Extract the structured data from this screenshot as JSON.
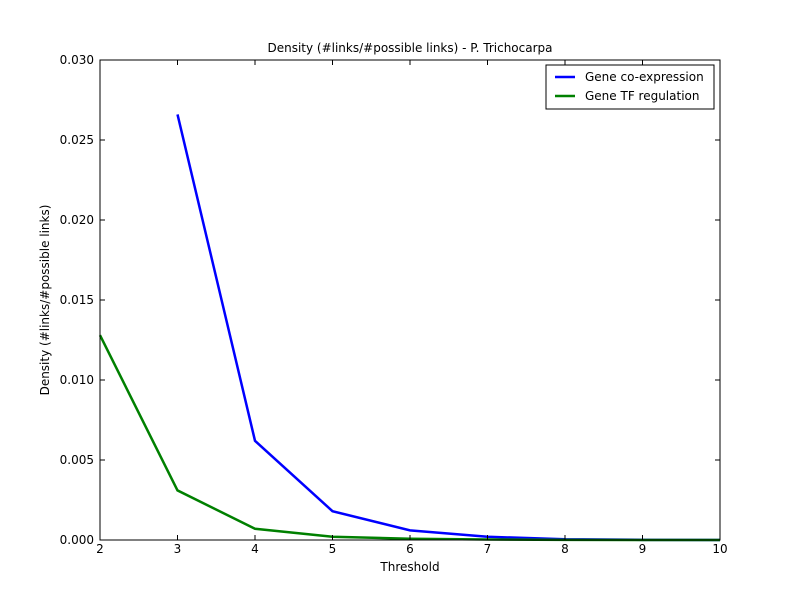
{
  "chart_data": {
    "type": "line",
    "title": "Density (#links/#possible links) - P. Trichocarpa",
    "xlabel": "Threshold",
    "ylabel": "Density (#links/#possible links)",
    "xlim": [
      2,
      10
    ],
    "ylim": [
      0,
      0.03
    ],
    "x_ticks": [
      2,
      3,
      4,
      5,
      6,
      7,
      8,
      9,
      10
    ],
    "y_ticks": [
      0,
      0.005,
      0.01,
      0.015,
      0.02,
      0.025,
      0.03
    ],
    "x_tick_labels": [
      "2",
      "3",
      "4",
      "5",
      "6",
      "7",
      "8",
      "9",
      "10"
    ],
    "y_tick_labels": [
      "0.000",
      "0.005",
      "0.010",
      "0.015",
      "0.020",
      "0.025",
      "0.030"
    ],
    "grid": false,
    "legend_position": "top-right",
    "series": [
      {
        "name": "Gene co-expression",
        "color": "#0000ff",
        "x": [
          3,
          4,
          5,
          6,
          7,
          8,
          9,
          10
        ],
        "y": [
          0.0266,
          0.0062,
          0.0018,
          0.0006,
          0.0002,
          5e-05,
          1e-05,
          0.0
        ]
      },
      {
        "name": "Gene TF regulation",
        "color": "#008000",
        "x": [
          2,
          3,
          4,
          5,
          6,
          7,
          8,
          9,
          10
        ],
        "y": [
          0.0128,
          0.0031,
          0.0007,
          0.0002,
          8e-05,
          3e-05,
          1e-05,
          0.0,
          0.0
        ]
      }
    ]
  }
}
